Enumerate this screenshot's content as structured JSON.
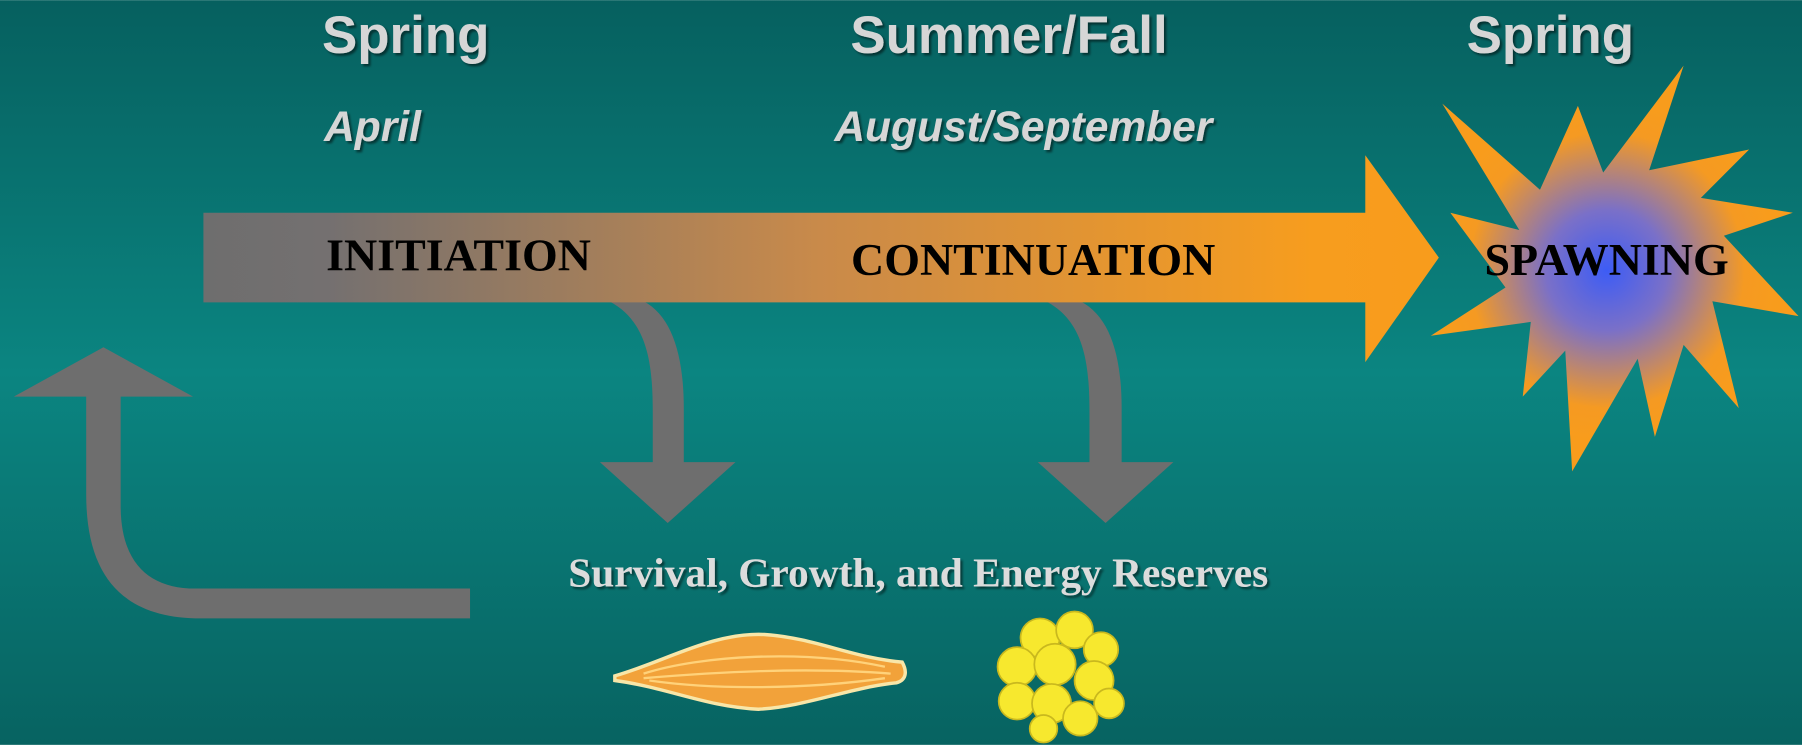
{
  "timeline": {
    "seasons": [
      "Spring",
      "Summer/Fall",
      "Spring"
    ],
    "months": [
      "April",
      "August/September"
    ],
    "stages": [
      "INITIATION",
      "CONTINUATION",
      "SPAWNING"
    ]
  },
  "outcome": {
    "label": "Survival, Growth, and Energy Reserves"
  }
}
